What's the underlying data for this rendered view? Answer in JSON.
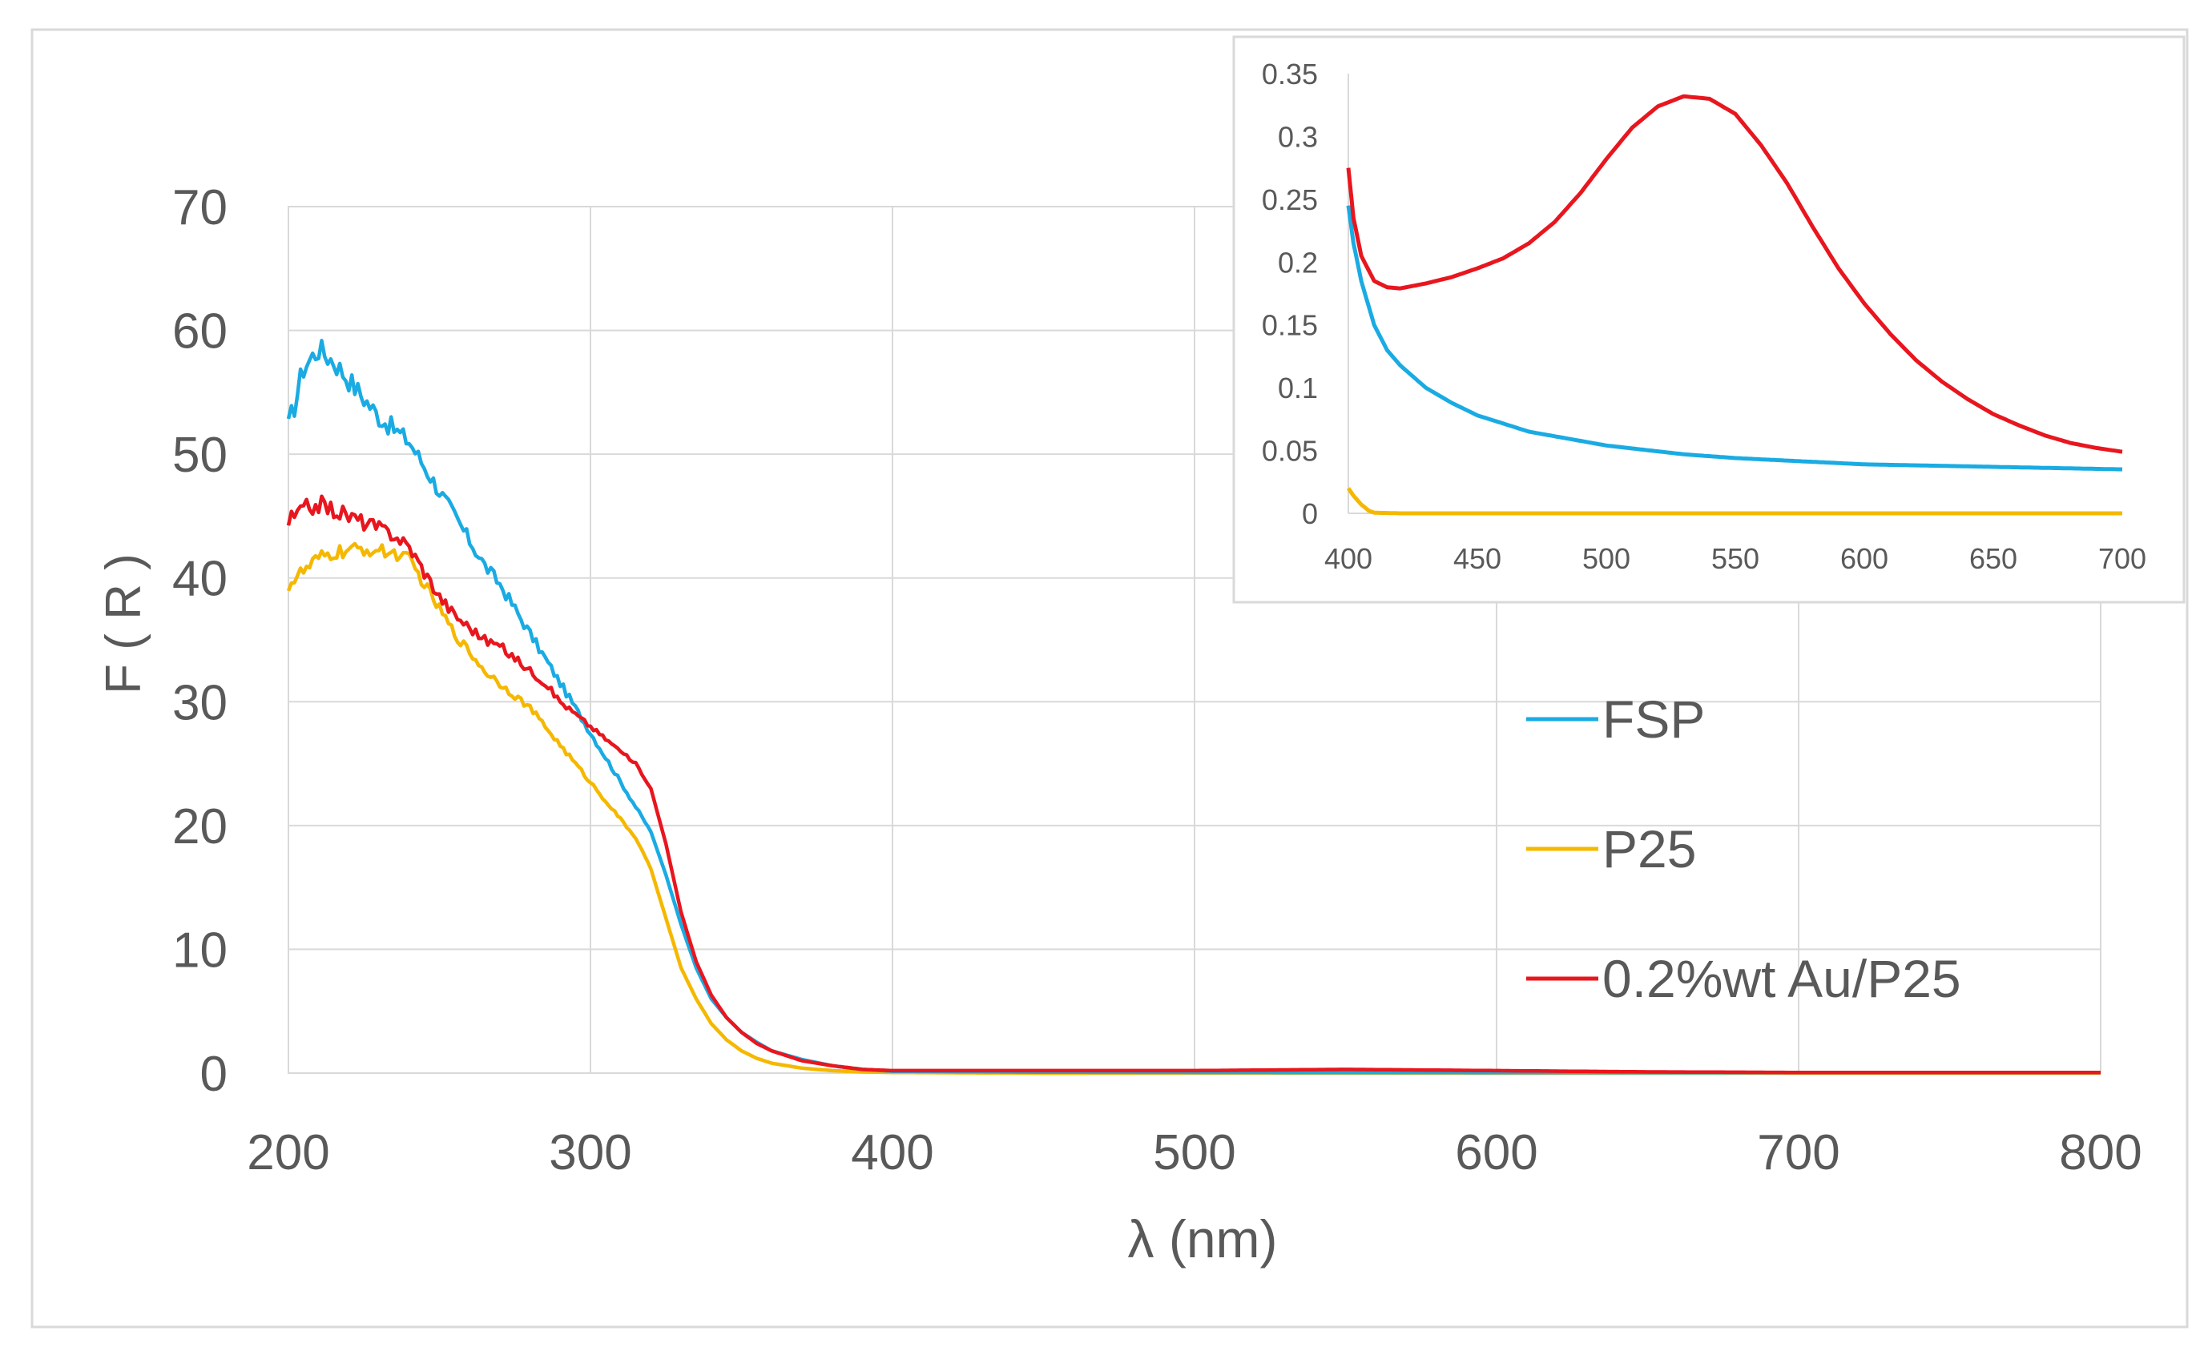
{
  "chart_data": [
    {
      "id": "main",
      "type": "line",
      "title": "",
      "xlabel": "λ (nm)",
      "ylabel": "F ( R )",
      "xlim": [
        200,
        800
      ],
      "ylim": [
        0,
        70
      ],
      "x_ticks": [
        200,
        300,
        400,
        500,
        600,
        700,
        800
      ],
      "y_ticks": [
        0,
        10,
        20,
        30,
        40,
        50,
        60,
        70
      ],
      "x_tick_labels": [
        "200",
        "300",
        "400",
        "500",
        "600",
        "700",
        "800"
      ],
      "y_tick_labels": [
        "0",
        "10",
        "20",
        "30",
        "40",
        "50",
        "60",
        "70"
      ],
      "grid": true,
      "legend_position": "right",
      "series": [
        {
          "name": "FSP",
          "color": "#1AABE3",
          "noise": 1.1,
          "x": [
            200,
            205,
            210,
            215,
            220,
            225,
            230,
            235,
            240,
            245,
            250,
            255,
            260,
            265,
            270,
            275,
            280,
            285,
            290,
            295,
            300,
            305,
            310,
            315,
            320,
            325,
            330,
            335,
            340,
            345,
            350,
            355,
            360,
            370,
            380,
            390,
            400,
            450,
            500,
            550,
            600,
            650,
            700,
            750,
            800
          ],
          "y": [
            52,
            57,
            58.5,
            57.5,
            56,
            54.5,
            53,
            52,
            51,
            49,
            47,
            45,
            43,
            41,
            39.5,
            37.5,
            35.5,
            33.5,
            31.5,
            29.5,
            27.5,
            25.5,
            23.5,
            21.5,
            19.5,
            16,
            12,
            8.5,
            6,
            4.5,
            3.3,
            2.5,
            1.8,
            1.1,
            0.6,
            0.3,
            0.15,
            0.08,
            0.06,
            0.05,
            0.04,
            0.04,
            0.04,
            0.04,
            0.04
          ]
        },
        {
          "name": "P25",
          "color": "#F5B800",
          "noise": 0.7,
          "x": [
            200,
            205,
            210,
            215,
            220,
            225,
            230,
            235,
            240,
            245,
            250,
            255,
            260,
            265,
            270,
            275,
            280,
            285,
            290,
            295,
            300,
            305,
            310,
            315,
            320,
            325,
            330,
            335,
            340,
            345,
            350,
            355,
            360,
            370,
            380,
            390,
            400,
            450,
            500,
            550,
            600,
            650,
            700,
            750,
            800
          ],
          "y": [
            39.5,
            40.5,
            41.5,
            42,
            42.2,
            42.3,
            42.2,
            42,
            41.5,
            39.5,
            37.5,
            35.5,
            34,
            32.5,
            31.5,
            30.5,
            29.5,
            28,
            26.5,
            25,
            23.5,
            22,
            20.5,
            19,
            16.5,
            12.5,
            8.5,
            6,
            4,
            2.7,
            1.8,
            1.2,
            0.8,
            0.4,
            0.2,
            0.1,
            0.05,
            0,
            0,
            0,
            0,
            0,
            0,
            0,
            0
          ]
        },
        {
          "name": "0.2%wt Au/P25",
          "color": "#E8161E",
          "noise": 0.8,
          "x": [
            200,
            205,
            210,
            215,
            220,
            225,
            230,
            235,
            240,
            245,
            250,
            255,
            260,
            265,
            270,
            275,
            280,
            285,
            290,
            295,
            300,
            305,
            310,
            315,
            320,
            325,
            330,
            335,
            340,
            345,
            350,
            355,
            360,
            370,
            380,
            390,
            400,
            450,
            500,
            550,
            600,
            650,
            700,
            750,
            800
          ],
          "y": [
            44.5,
            45.5,
            46,
            45.5,
            45,
            44.5,
            44,
            43.5,
            42.5,
            40.5,
            38.5,
            37,
            36,
            35,
            34.5,
            33.5,
            32.5,
            31.5,
            30,
            29,
            28,
            27,
            26,
            25,
            23,
            18.5,
            13,
            9,
            6.3,
            4.5,
            3.3,
            2.4,
            1.8,
            1,
            0.6,
            0.3,
            0.2,
            0.2,
            0.2,
            0.3,
            0.2,
            0.1,
            0.05,
            0.05,
            0.05
          ]
        }
      ]
    },
    {
      "id": "inset",
      "type": "line",
      "title": "",
      "xlabel": "",
      "ylabel": "",
      "xlim": [
        400,
        700
      ],
      "ylim": [
        0,
        0.35
      ],
      "x_ticks": [
        400,
        450,
        500,
        550,
        600,
        650,
        700
      ],
      "y_ticks": [
        0,
        0.05,
        0.1,
        0.15,
        0.2,
        0.25,
        0.3,
        0.35
      ],
      "x_tick_labels": [
        "400",
        "450",
        "500",
        "550",
        "600",
        "650",
        "700"
      ],
      "y_tick_labels": [
        "0",
        "0.05",
        "0.1",
        "0.15",
        "0.2",
        "0.25",
        "0.3",
        "0.35"
      ],
      "grid": false,
      "legend_position": "none",
      "series": [
        {
          "name": "FSP",
          "color": "#1AABE3",
          "x": [
            400,
            402,
            405,
            410,
            415,
            420,
            430,
            440,
            450,
            470,
            500,
            530,
            550,
            600,
            650,
            700
          ],
          "y": [
            0.245,
            0.215,
            0.185,
            0.15,
            0.13,
            0.118,
            0.1,
            0.088,
            0.078,
            0.065,
            0.054,
            0.047,
            0.044,
            0.039,
            0.037,
            0.035
          ]
        },
        {
          "name": "P25",
          "color": "#F5B800",
          "x": [
            400,
            402,
            405,
            408,
            410,
            420,
            450,
            500,
            550,
            600,
            650,
            700
          ],
          "y": [
            0.02,
            0.014,
            0.007,
            0.002,
            0.0005,
            0,
            0,
            0,
            0,
            0,
            0,
            0
          ]
        },
        {
          "name": "0.2%wt Au/P25",
          "color": "#E8161E",
          "x": [
            400,
            402,
            405,
            410,
            415,
            420,
            430,
            440,
            450,
            460,
            470,
            480,
            490,
            500,
            510,
            520,
            530,
            540,
            550,
            560,
            570,
            580,
            590,
            600,
            610,
            620,
            630,
            640,
            650,
            660,
            670,
            680,
            690,
            700
          ],
          "y": [
            0.275,
            0.235,
            0.205,
            0.185,
            0.18,
            0.179,
            0.183,
            0.188,
            0.195,
            0.203,
            0.215,
            0.232,
            0.255,
            0.282,
            0.307,
            0.324,
            0.332,
            0.33,
            0.318,
            0.293,
            0.263,
            0.228,
            0.195,
            0.167,
            0.143,
            0.122,
            0.105,
            0.091,
            0.079,
            0.07,
            0.062,
            0.056,
            0.052,
            0.049
          ]
        }
      ]
    }
  ]
}
